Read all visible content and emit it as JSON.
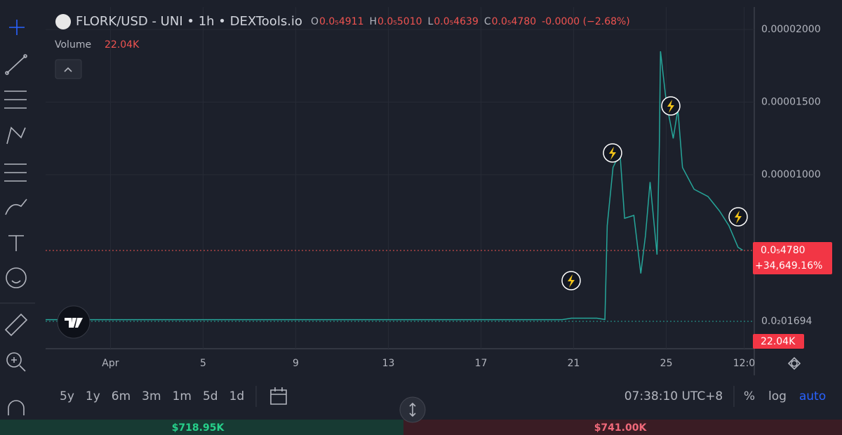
{
  "header": {
    "symbol": "FLORK/USD - UNI • 1h • DEXTools.io",
    "ohlc": [
      {
        "key": "O",
        "value": "0.0₅4911"
      },
      {
        "key": "H",
        "value": "0.0₅5010"
      },
      {
        "key": "L",
        "value": "0.0₅4639"
      },
      {
        "key": "C",
        "value": "0.0₅4780"
      }
    ],
    "change": "-0.0000 (−2.68%)",
    "volume_label": "Volume",
    "volume_value": "22.04K"
  },
  "chart": {
    "type": "line",
    "color": "#26a69a",
    "x": [
      -1.8,
      20.5,
      20.9,
      22,
      22.35,
      22.45,
      22.7,
      23,
      23.2,
      23.6,
      23.9,
      24.1,
      24.3,
      24.6,
      24.7,
      24.75,
      25,
      25.3,
      25.5,
      25.7,
      26.2,
      26.8,
      27.3,
      27.7,
      28.1,
      28.3
    ],
    "values": [
      2e-08,
      2e-08,
      1.2e-07,
      1.2e-07,
      3e-08,
      6.5e-06,
      1.05e-05,
      1.15e-05,
      7e-06,
      7.2e-06,
      3.2e-06,
      5.8e-06,
      9.5e-06,
      4.5e-06,
      1.2e-05,
      1.85e-05,
      1.5e-05,
      1.25e-05,
      1.45e-05,
      1.05e-05,
      9e-06,
      8.5e-06,
      7.5e-06,
      6.5e-06,
      5e-06,
      4.8e-06
    ],
    "xlim": [
      -1.8,
      28.8
    ],
    "ylim": [
      0,
      2.155e-05
    ],
    "xticks": [
      {
        "value": 1,
        "label": "Apr"
      },
      5,
      9,
      13,
      17,
      21,
      25,
      {
        "value": 28.36,
        "label": "12:0"
      }
    ],
    "yticks": [
      {
        "value": 1e-05,
        "label": "0.00001000"
      },
      {
        "value": 1.5e-05,
        "label": "0.00001500"
      },
      {
        "value": 2e-05,
        "label": "0.00002000"
      }
    ],
    "low_label": "0.0₂01694",
    "price_label": "0.0₅4780",
    "price_change": "+34,649.16%",
    "volume_label": "22.04K"
  },
  "toolbar": {
    "ranges": [
      "5y",
      "1y",
      "6m",
      "3m",
      "1m",
      "5d",
      "1d"
    ],
    "time": "07:38:10 UTC+8",
    "percent": "%",
    "log": "log",
    "auto": "auto"
  },
  "footer": {
    "buy": "$718.95K",
    "sell": "$741.00K"
  }
}
